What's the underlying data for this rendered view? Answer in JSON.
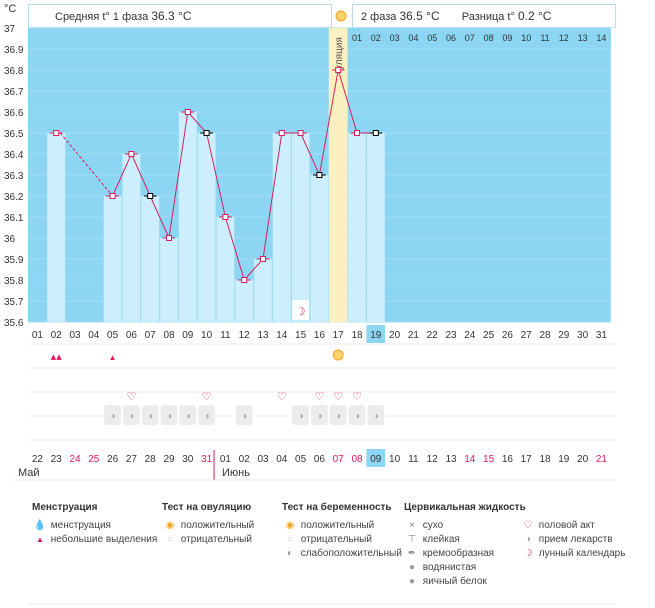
{
  "header": {
    "phase1_label": "Средняя t° 1 фаза",
    "phase1_value": "36.3 °C",
    "phase2_label": "2 фаза",
    "phase2_value": "36.5 °C",
    "diff_label": "Разница t°",
    "diff_value": "0.2 °C"
  },
  "chart_data": {
    "type": "line",
    "title": "Базальная температура",
    "ylabel": "°C",
    "ylim": [
      35.6,
      37.0
    ],
    "yticks": [
      "37",
      "36.9",
      "36.8",
      "36.7",
      "36.6",
      "36.5",
      "36.4",
      "36.3",
      "36.2",
      "36.1",
      "36",
      "35.9",
      "35.8",
      "35.7",
      "35.6"
    ],
    "cycle_days": [
      "01",
      "02",
      "03",
      "04",
      "05",
      "06",
      "07",
      "08",
      "09",
      "10",
      "11",
      "12",
      "13",
      "14",
      "15",
      "16",
      "17",
      "18",
      "19",
      "20",
      "21",
      "22",
      "23",
      "24",
      "25",
      "26",
      "27",
      "28",
      "29",
      "30",
      "31"
    ],
    "calendar_dates": [
      "22",
      "23",
      "24",
      "25",
      "26",
      "27",
      "28",
      "29",
      "30",
      "31",
      "01",
      "02",
      "03",
      "04",
      "05",
      "06",
      "07",
      "08",
      "09",
      "10",
      "11",
      "12",
      "13",
      "14",
      "15",
      "16",
      "17",
      "18",
      "19",
      "20",
      "21"
    ],
    "weekend_dates_red": [
      2,
      3,
      9,
      16,
      17,
      23,
      24,
      30
    ],
    "temperatures": [
      null,
      36.5,
      null,
      null,
      36.2,
      36.4,
      36.2,
      36.0,
      36.6,
      36.5,
      36.1,
      35.8,
      35.9,
      36.5,
      36.5,
      36.3,
      36.8,
      36.5,
      36.5,
      null,
      null,
      null,
      null,
      null,
      null,
      null,
      null,
      null,
      null,
      null,
      null
    ],
    "dashed_segment": [
      2,
      5
    ],
    "ovulation_day": 17,
    "ovulation_label": "Овуляция",
    "post_ovulation_days": [
      "01",
      "02",
      "03",
      "04",
      "05",
      "06",
      "07",
      "08",
      "09",
      "10",
      "11",
      "12",
      "13",
      "14"
    ],
    "current_day_index": 19,
    "current_calendar_date": "09",
    "months": [
      "Май",
      "Июнь"
    ],
    "markers": {
      "menstruation": [
        2
      ],
      "spotting": [
        5
      ],
      "ovulation_test_positive": [
        17
      ],
      "intercourse": [
        6,
        10,
        14,
        16,
        17,
        18
      ],
      "medication": [
        5,
        6,
        7,
        8,
        9,
        10,
        12,
        15,
        16,
        17,
        18,
        19
      ],
      "lunar": [
        15
      ]
    }
  },
  "legend": {
    "menstruation": {
      "title": "Менструация",
      "items": [
        "менструация",
        "небольшие выделения"
      ]
    },
    "ovulation_test": {
      "title": "Тест на овуляцию",
      "items": [
        "положительный",
        "отрицательный"
      ]
    },
    "pregnancy_test": {
      "title": "Тест на беременность",
      "items": [
        "положительный",
        "отрицательный",
        "слабоположительный"
      ]
    },
    "cervical": {
      "title": "Цервикальная жидкость",
      "items": [
        "сухо",
        "клейкая",
        "кремообразная",
        "водянистая",
        "яичный белок"
      ]
    },
    "other": {
      "items": [
        "половой акт",
        "прием лекарств",
        "лунный календарь"
      ]
    }
  },
  "colors": {
    "sky": "#8cd6f3",
    "bar": "#cdeefc",
    "ovulation": "#fdf0c0",
    "line": "#d2215f",
    "red": "#e0185a"
  }
}
